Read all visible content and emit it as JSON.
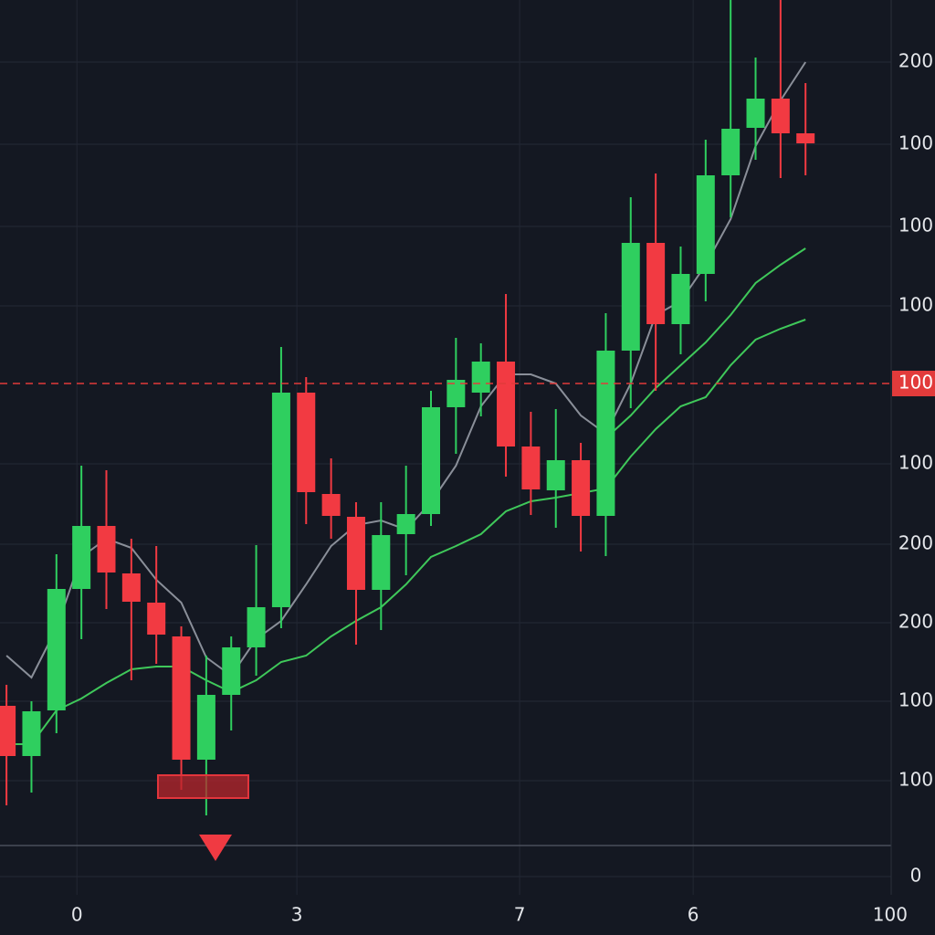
{
  "chart_data": {
    "type": "candlestick",
    "x": [
      0,
      1,
      2,
      3,
      4,
      5,
      6,
      7,
      8,
      9,
      10,
      11,
      12,
      13,
      14,
      15,
      16,
      17,
      18,
      19,
      20,
      21,
      22,
      23,
      24,
      25,
      26,
      27,
      28,
      29,
      30,
      31,
      32
    ],
    "open": [
      187,
      132,
      182,
      315,
      384,
      332,
      300,
      263,
      128,
      199,
      251,
      295,
      530,
      419,
      394,
      314,
      375,
      397,
      514,
      530,
      564,
      471,
      423,
      456,
      395,
      576,
      694,
      605,
      660,
      768,
      820,
      852,
      814
    ],
    "high": [
      210,
      192,
      353,
      450,
      445,
      370,
      362,
      274,
      242,
      263,
      363,
      580,
      547,
      458,
      410,
      410,
      450,
      532,
      590,
      584,
      638,
      509,
      512,
      475,
      617,
      744,
      770,
      690,
      807,
      960,
      897,
      960,
      869
    ],
    "low": [
      78,
      92,
      157,
      260,
      293,
      215,
      233,
      95,
      67,
      160,
      220,
      272,
      386,
      370,
      254,
      270,
      330,
      384,
      463,
      504,
      438,
      396,
      382,
      356,
      351,
      513,
      532,
      572,
      630,
      722,
      785,
      765,
      768
    ],
    "close": [
      132,
      181,
      315,
      384,
      333,
      301,
      265,
      128,
      199,
      251,
      295,
      530,
      421,
      395,
      314,
      374,
      397,
      514,
      544,
      564,
      471,
      424,
      456,
      395,
      576,
      694,
      605,
      660,
      768,
      819,
      852,
      814,
      803
    ],
    "up_color": "#2fcf5f",
    "down_color": "#f23a42",
    "overlays": [
      {
        "color": "#8a8f99",
        "values": [
          242,
          218,
          272,
          350,
          370,
          360,
          325,
          300,
          240,
          220,
          260,
          280,
          320,
          362,
          385,
          390,
          380,
          410,
          450,
          515,
          550,
          550,
          540,
          505,
          485,
          540,
          615,
          630,
          670,
          720,
          800,
          850,
          892
        ]
      },
      {
        "color": "#3fc85a",
        "values": [
          145,
          145,
          182,
          195,
          212,
          227,
          230,
          230,
          215,
          202,
          215,
          235,
          242,
          263,
          280,
          295,
          320,
          350,
          362,
          375,
          400,
          411,
          415,
          420,
          425,
          460,
          490,
          515,
          525,
          560,
          588,
          600,
          610
        ]
      },
      {
        "color": "#3fc85a",
        "values": [
          null,
          null,
          null,
          null,
          null,
          null,
          null,
          null,
          null,
          null,
          null,
          null,
          null,
          null,
          null,
          null,
          null,
          null,
          null,
          null,
          null,
          null,
          null,
          null,
          480,
          505,
          535,
          560,
          585,
          615,
          650,
          670,
          688
        ]
      }
    ],
    "xlim": [
      -0.26,
      35.43
    ],
    "ylim": [
      0,
      960
    ],
    "xticks": [
      {
        "value": 2.82,
        "label": "0"
      },
      {
        "value": 11.63,
        "label": "3"
      },
      {
        "value": 20.55,
        "label": "7"
      },
      {
        "value": 27.5,
        "label": "6"
      },
      {
        "value": 35.39,
        "label": "100"
      }
    ],
    "yticks": [
      {
        "value": 892,
        "label": "200"
      },
      {
        "value": 802,
        "label": "100"
      },
      {
        "value": 712,
        "label": "100"
      },
      {
        "value": 625,
        "label": "100"
      },
      {
        "value": 452,
        "label": "100"
      },
      {
        "value": 364,
        "label": "200"
      },
      {
        "value": 278,
        "label": "200"
      },
      {
        "value": 192,
        "label": "100"
      },
      {
        "value": 105,
        "label": "100"
      },
      0
    ],
    "price_line": {
      "value": 540,
      "label": "100",
      "color": "#e23b3b"
    },
    "grid": true
  }
}
